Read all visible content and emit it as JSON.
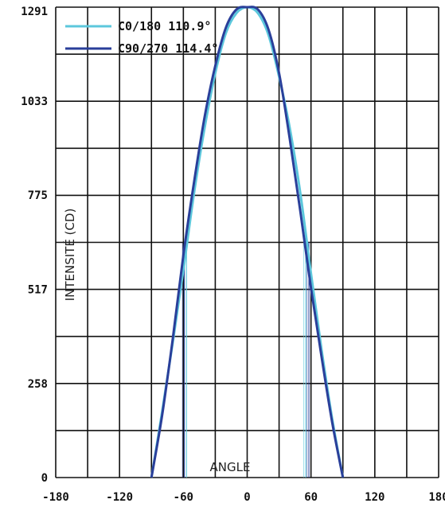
{
  "chart_data": {
    "type": "line",
    "xlabel": "ANGLE",
    "ylabel": "INTENSITÉ (CD)",
    "xlim": [
      -180,
      180
    ],
    "ylim": [
      0,
      1291
    ],
    "x_ticks": [
      "-180",
      "-120",
      "-60",
      "0",
      "60",
      "120",
      "180"
    ],
    "y_ticks": [
      "0",
      "258",
      "517",
      "775",
      "1033",
      "1291"
    ],
    "grid": true,
    "legend_position": "top-left",
    "series": [
      {
        "name": "C0/180 110.9°",
        "color": "#5cc7dc",
        "x": [
          -90,
          -80,
          -70,
          -60,
          -50,
          -40,
          -30,
          -20,
          -10,
          0,
          10,
          20,
          30,
          40,
          50,
          60,
          70,
          80,
          90
        ],
        "y": [
          0,
          180,
          370,
          570,
          780,
          960,
          1110,
          1220,
          1275,
          1291,
          1275,
          1215,
          1100,
          960,
          780,
          560,
          350,
          160,
          0
        ],
        "markers_x": [
          -57,
          55
        ]
      },
      {
        "name": "C90/270 114.4°",
        "color": "#2a3f9a",
        "x": [
          -90,
          -80,
          -70,
          -60,
          -50,
          -40,
          -30,
          -20,
          -10,
          0,
          10,
          20,
          30,
          40,
          50,
          60,
          70,
          80,
          90
        ],
        "y": [
          0,
          170,
          380,
          610,
          810,
          990,
          1130,
          1235,
          1285,
          1291,
          1285,
          1230,
          1110,
          930,
          730,
          520,
          330,
          150,
          0
        ],
        "markers_x": [
          -59,
          58
        ]
      }
    ]
  }
}
